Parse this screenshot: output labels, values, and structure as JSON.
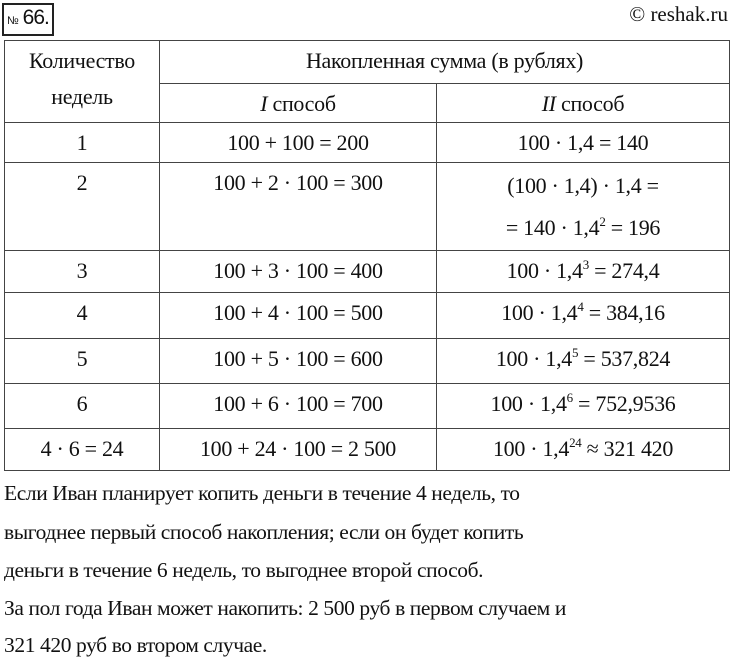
{
  "header": {
    "problem_number": "66.",
    "number_sign": "№",
    "copyright": "© reshak.ru"
  },
  "table": {
    "col1_header": [
      "Количество",
      "недель"
    ],
    "group_header": "Накопленная сумма (в рублях)",
    "method1_roman": "I",
    "method2_roman": "II",
    "method_word": " способ",
    "rows": [
      {
        "weeks": "1",
        "m1": "100 + 100 = 200",
        "m2a": "100 · 1,4 = 140",
        "m2b_pre": "",
        "m2b_sup": "",
        "m2b_post": ""
      },
      {
        "weeks": "2",
        "m1": "100 + 2 · 100 = 300",
        "m2a": "(100 · 1,4) · 1,4 =",
        "m2b_pre": "= 140 · 1,4",
        "m2b_sup": "2",
        "m2b_post": " = 196"
      },
      {
        "weeks": "3",
        "m1": "100 + 3 · 100 = 400",
        "m2_pre": "100 · 1,4",
        "m2_sup": "3",
        "m2_post": " = 274,4"
      },
      {
        "weeks": "4",
        "m1": "100 + 4 · 100 = 500",
        "m2_pre": "100 · 1,4",
        "m2_sup": "4",
        "m2_post": " = 384,16"
      },
      {
        "weeks": "5",
        "m1": "100 + 5 · 100 = 600",
        "m2_pre": "100 · 1,4",
        "m2_sup": "5",
        "m2_post": " = 537,824"
      },
      {
        "weeks": "6",
        "m1": "100 + 6 · 100 = 700",
        "m2_pre": "100 · 1,4",
        "m2_sup": "6",
        "m2_post": " = 752,9536"
      },
      {
        "weeks": "4 · 6 = 24",
        "m1": "100 + 24 · 100 = 2 500",
        "m2_pre": "100 · 1,4",
        "m2_sup": "24",
        "m2_post": " ≈ 321 420"
      }
    ]
  },
  "answer": [
    "Если Иван планирует копить деньги в течение 4 недель, то",
    "выгоднее первый способ накопления; если он будет копить",
    "деньги в течение 6 недель, то выгоднее второй способ.",
    "За пол года Иван может накопить: 2 500 руб в первом случаем и",
    "321 420 руб во втором случае."
  ]
}
